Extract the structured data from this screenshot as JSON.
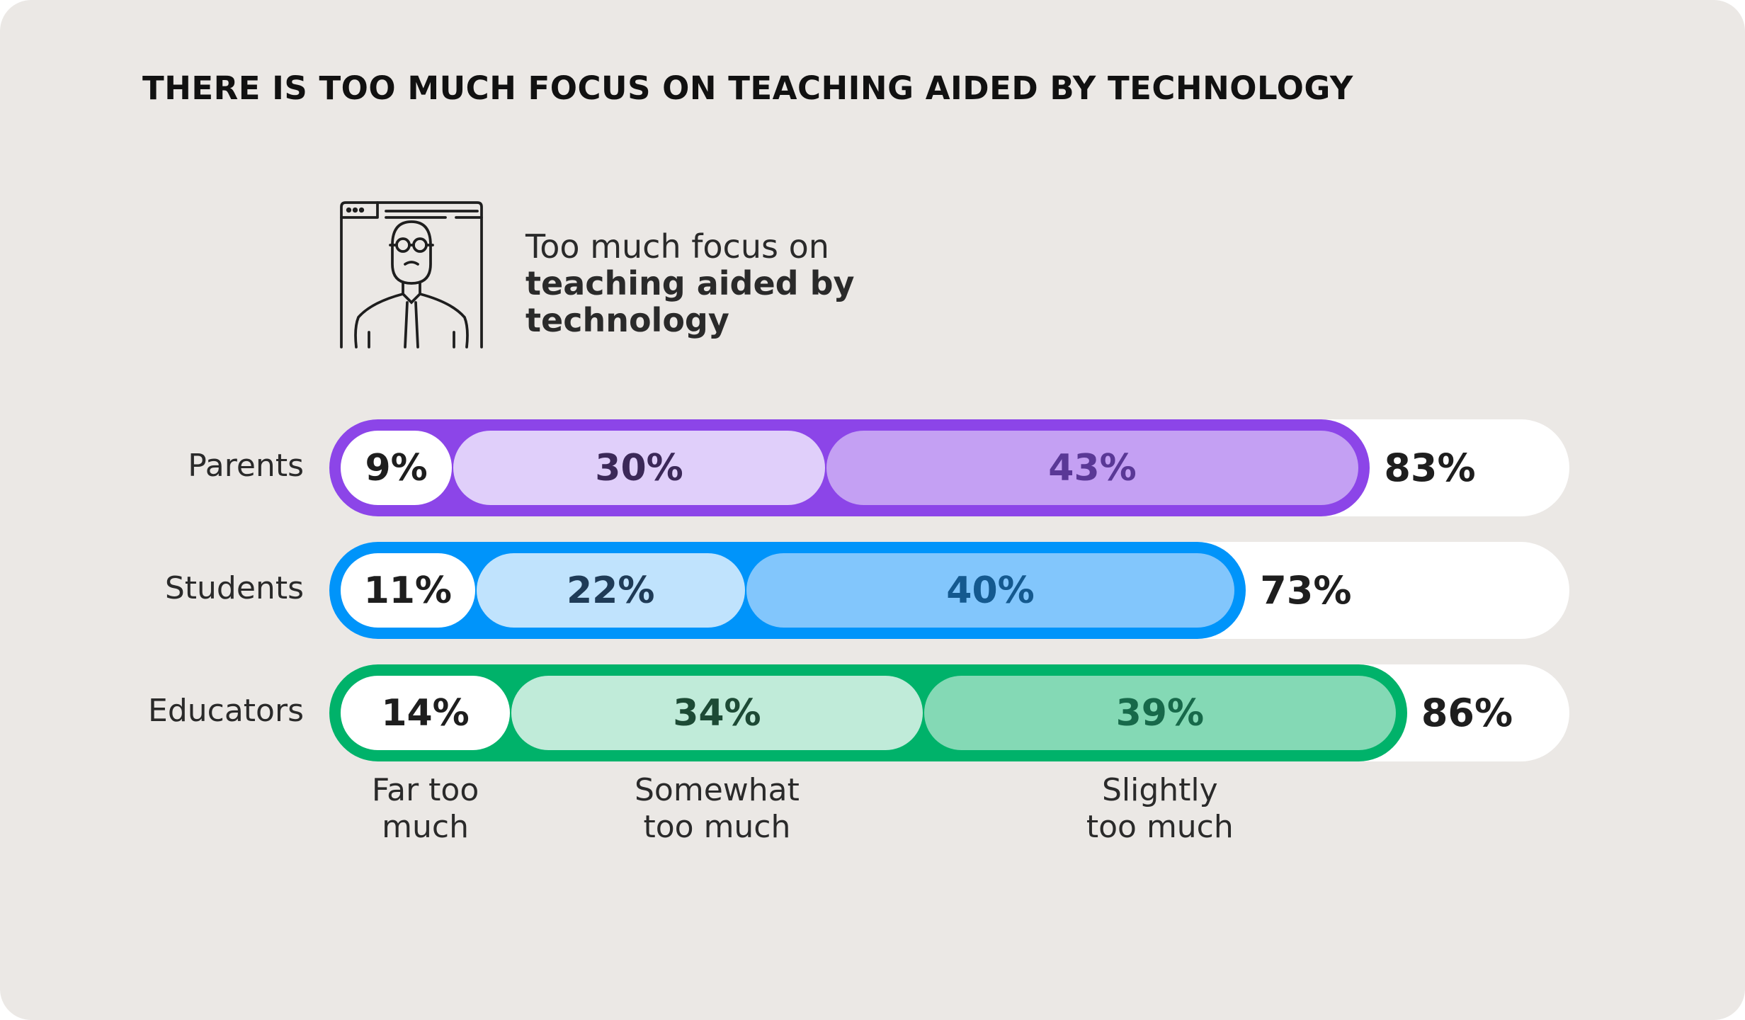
{
  "chart_data": {
    "type": "bar",
    "stacked": true,
    "orientation": "horizontal",
    "title": "THERE IS TOO MUCH FOCUS ON TEACHING AIDED BY TECHNOLOGY",
    "subtitle": {
      "light": "Too much focus on",
      "bold": "teaching aided by technology"
    },
    "categories": [
      "Parents",
      "Students",
      "Educators"
    ],
    "series": [
      {
        "name": "Far too much",
        "values": [
          9,
          11,
          14
        ]
      },
      {
        "name": "Somewhat too much",
        "values": [
          30,
          22,
          34
        ]
      },
      {
        "name": "Slightly too much",
        "values": [
          43,
          40,
          39
        ]
      }
    ],
    "totals": [
      83,
      73,
      86
    ],
    "labels": {
      "values": [
        [
          "9%",
          "30%",
          "43%"
        ],
        [
          "11%",
          "22%",
          "40%"
        ],
        [
          "14%",
          "34%",
          "39%"
        ]
      ],
      "totals": [
        "83%",
        "73%",
        "86%"
      ]
    },
    "legend": [
      {
        "line1": "Far too",
        "line2": "much"
      },
      {
        "line1": "Somewhat",
        "line2": "too much"
      },
      {
        "line1": "Slightly",
        "line2": "too much"
      }
    ],
    "xlim": [
      0,
      100
    ],
    "colors": [
      {
        "outer": "#8c45e8",
        "seg": [
          "#ffffff",
          "#e0cffa",
          "#c4a0f3"
        ],
        "text": [
          "#1e1e1e",
          "#3b2858",
          "#5a3896"
        ]
      },
      {
        "outer": "#0094fa",
        "seg": [
          "#ffffff",
          "#c0e3fd",
          "#82c6fc"
        ],
        "text": [
          "#1e1e1e",
          "#1f3b57",
          "#14598f"
        ]
      },
      {
        "outer": "#00b26a",
        "seg": [
          "#ffffff",
          "#c0ebd9",
          "#84d9b5"
        ],
        "text": [
          "#1e1e1e",
          "#1d4a35",
          "#17694a"
        ]
      }
    ]
  }
}
